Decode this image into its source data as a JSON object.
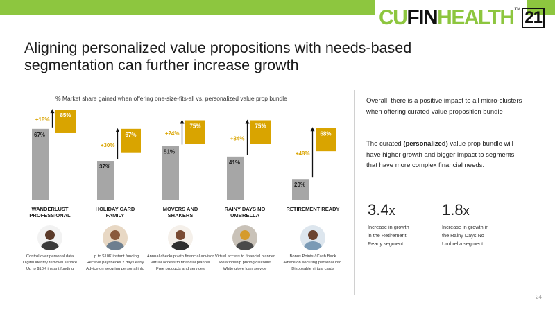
{
  "header": {
    "logo": {
      "part1": "CU",
      "part2": "FIN",
      "part3": "HEALTH",
      "tm": "TM",
      "number": "21"
    },
    "accent_color": "#8dc63f"
  },
  "title_line1": "Aligning personalized value propositions with needs-based",
  "title_line2": "segmentation can further increase growth",
  "chart_data": {
    "type": "bar",
    "title": "% Market share gained when offering one-size-fits-all vs. personalized value prop bundle",
    "categories": [
      "WANDERLUST PROFESSIONAL",
      "HOLIDAY CARD FAMILY",
      "MOVERS AND SHAKERS",
      "RAINY DAYS NO UMBRELLA",
      "RETIREMENT READY"
    ],
    "series": [
      {
        "values": [
          67,
          37,
          51,
          41,
          20
        ],
        "color": "#a6a6a6"
      },
      {
        "values": [
          85,
          67,
          75,
          75,
          68
        ],
        "color": "#d9a400"
      }
    ],
    "value_labels": {
      "base": [
        "67%",
        "37%",
        "51%",
        "41%",
        "20%"
      ],
      "personalized": [
        "85%",
        "67%",
        "75%",
        "75%",
        "68%"
      ],
      "uplift": [
        "+18%",
        "+30%",
        "+24%",
        "+34%",
        "+48%"
      ]
    },
    "ylim": [
      0,
      100
    ]
  },
  "segments": [
    {
      "line1": "WANDERLUST",
      "line2": "PROFESSIONAL",
      "icon": "professional-man-avatar",
      "features": [
        "Control over personal data",
        "Digital identity removal service",
        "Up to $10K instant funding"
      ]
    },
    {
      "line1": "HOLIDAY CARD",
      "line2": "FAMILY",
      "icon": "family-avatar",
      "features": [
        "Up to $10K instant funding",
        "Receive paychecks 2 days early",
        "Advice on securing personal info"
      ]
    },
    {
      "line1": "MOVERS AND",
      "line2": "SHAKERS",
      "icon": "businesswoman-avatar",
      "features": [
        "Annual checkup with financial advisor",
        "Virtual access to financial planner",
        "Free products and services"
      ]
    },
    {
      "line1": "RAINY DAYS NO",
      "line2": "UMBRELLA",
      "icon": "worker-avatar",
      "features": [
        "Virtual access to financial planner",
        "Relationship pricing discount",
        "White glove loan service"
      ]
    },
    {
      "line1": "RETIREMENT READY",
      "line2": "",
      "icon": "retired-couple-avatar",
      "features": [
        "Bonus Points / Cash Back",
        "Advice on securing personal info.",
        "Disposable virtual cards"
      ]
    }
  ],
  "side": {
    "para1": "Overall, there is a positive impact to all micro-clusters when offering curated value proposition bundle",
    "para2_pre": "The curated ",
    "para2_bold": "(personalized)",
    "para2_post": " value prop bundle will have higher growth and bigger impact to segments that have more complex financial needs:",
    "stat1": {
      "value": "3.4",
      "unit": "x",
      "desc_lines": [
        "Increase in growth",
        "in the Retirement",
        "Ready segment"
      ]
    },
    "stat2": {
      "value": "1.8",
      "unit": "x",
      "desc_lines": [
        "Increase in growth in",
        "the Rainy Days No",
        "Umbrella segment"
      ]
    }
  },
  "page_number": "24"
}
